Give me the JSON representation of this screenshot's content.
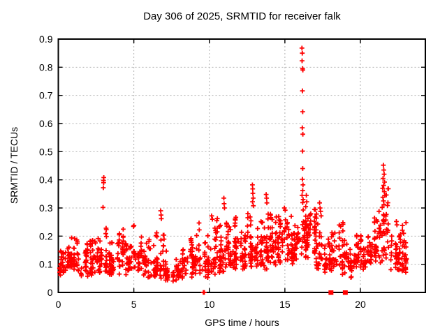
{
  "chart_data": {
    "type": "scatter",
    "title": "Day 306 of 2025, SRMTID for receiver falk",
    "xlabel": "GPS time / hours",
    "ylabel": "SRMTID / TECUs",
    "xlim": [
      0,
      24.3
    ],
    "ylim": [
      0,
      0.9
    ],
    "xticks": [
      0,
      5,
      10,
      15,
      20
    ],
    "xtick_labels": [
      "0",
      "5",
      "10",
      "15",
      "20"
    ],
    "yticks": [
      0,
      0.1,
      0.2,
      0.3,
      0.4,
      0.5,
      0.6,
      0.7,
      0.8,
      0.9
    ],
    "ytick_labels": [
      "0",
      "0.1",
      "0.2",
      "0.3",
      "0.4",
      "0.5",
      "0.6",
      "0.7",
      "0.8",
      "0.9"
    ],
    "grid": "dashed-major",
    "legend": "none",
    "series": [
      {
        "name": "SRMTID",
        "marker": "plus",
        "color": "#ff0000"
      }
    ],
    "band_bins": [
      [
        0.0,
        0.5,
        28,
        0.06,
        0.16
      ],
      [
        0.5,
        1.0,
        30,
        0.07,
        0.22
      ],
      [
        1.0,
        1.5,
        28,
        0.07,
        0.2
      ],
      [
        1.5,
        2.0,
        28,
        0.05,
        0.18
      ],
      [
        2.0,
        2.5,
        30,
        0.06,
        0.23
      ],
      [
        2.5,
        3.0,
        28,
        0.07,
        0.2
      ],
      [
        3.0,
        3.5,
        30,
        0.06,
        0.25
      ],
      [
        3.5,
        4.0,
        28,
        0.05,
        0.2
      ],
      [
        4.0,
        4.5,
        30,
        0.06,
        0.24
      ],
      [
        4.5,
        5.0,
        28,
        0.05,
        0.24
      ],
      [
        5.0,
        5.5,
        28,
        0.07,
        0.2
      ],
      [
        5.5,
        6.0,
        26,
        0.05,
        0.19
      ],
      [
        6.0,
        6.5,
        26,
        0.05,
        0.17
      ],
      [
        6.5,
        7.0,
        28,
        0.05,
        0.24
      ],
      [
        7.0,
        7.5,
        24,
        0.04,
        0.15
      ],
      [
        7.5,
        8.0,
        24,
        0.04,
        0.13
      ],
      [
        8.0,
        8.5,
        26,
        0.05,
        0.16
      ],
      [
        8.5,
        9.0,
        28,
        0.05,
        0.22
      ],
      [
        9.0,
        9.5,
        26,
        0.06,
        0.25
      ],
      [
        9.5,
        10.0,
        28,
        0.05,
        0.22
      ],
      [
        10.0,
        10.5,
        32,
        0.06,
        0.27
      ],
      [
        10.5,
        11.0,
        32,
        0.06,
        0.24
      ],
      [
        11.0,
        11.5,
        32,
        0.07,
        0.26
      ],
      [
        11.5,
        12.0,
        34,
        0.07,
        0.28
      ],
      [
        12.0,
        12.5,
        34,
        0.08,
        0.26
      ],
      [
        12.5,
        13.0,
        34,
        0.08,
        0.3
      ],
      [
        13.0,
        13.5,
        34,
        0.09,
        0.28
      ],
      [
        13.5,
        14.0,
        34,
        0.08,
        0.3
      ],
      [
        14.0,
        14.5,
        34,
        0.09,
        0.28
      ],
      [
        14.5,
        15.0,
        34,
        0.1,
        0.28
      ],
      [
        15.0,
        15.5,
        34,
        0.1,
        0.28
      ],
      [
        15.5,
        16.0,
        34,
        0.1,
        0.3
      ],
      [
        16.0,
        16.5,
        36,
        0.12,
        0.32
      ],
      [
        16.5,
        17.0,
        34,
        0.12,
        0.3
      ],
      [
        17.0,
        17.5,
        30,
        0.08,
        0.28
      ],
      [
        17.5,
        18.0,
        28,
        0.06,
        0.2
      ],
      [
        18.0,
        18.5,
        28,
        0.07,
        0.22
      ],
      [
        18.5,
        19.0,
        28,
        0.06,
        0.25
      ],
      [
        19.0,
        19.5,
        26,
        0.05,
        0.18
      ],
      [
        19.5,
        20.0,
        28,
        0.08,
        0.22
      ],
      [
        20.0,
        20.5,
        30,
        0.08,
        0.24
      ],
      [
        20.5,
        21.0,
        30,
        0.1,
        0.28
      ],
      [
        21.0,
        21.5,
        30,
        0.1,
        0.3
      ],
      [
        21.5,
        22.0,
        32,
        0.12,
        0.38
      ],
      [
        22.0,
        22.5,
        28,
        0.08,
        0.22
      ],
      [
        22.5,
        23.0,
        30,
        0.05,
        0.25
      ],
      [
        23.0,
        23.2,
        12,
        0.07,
        0.2
      ]
    ],
    "outlier_points": [
      [
        2.96,
        0.302
      ],
      [
        2.98,
        0.372
      ],
      [
        2.99,
        0.398
      ],
      [
        3.01,
        0.408
      ],
      [
        3.0,
        0.39
      ],
      [
        6.78,
        0.29
      ],
      [
        6.8,
        0.275
      ],
      [
        6.82,
        0.262
      ],
      [
        10.15,
        0.272
      ],
      [
        10.2,
        0.26
      ],
      [
        10.96,
        0.335
      ],
      [
        10.98,
        0.315
      ],
      [
        11.0,
        0.3
      ],
      [
        12.85,
        0.382
      ],
      [
        12.87,
        0.368
      ],
      [
        12.88,
        0.352
      ],
      [
        12.9,
        0.335
      ],
      [
        12.86,
        0.322
      ],
      [
        12.91,
        0.308
      ],
      [
        13.76,
        0.348
      ],
      [
        13.79,
        0.335
      ],
      [
        13.81,
        0.318
      ],
      [
        14.97,
        0.3
      ],
      [
        15.02,
        0.292
      ],
      [
        16.13,
        0.868
      ],
      [
        16.15,
        0.85
      ],
      [
        16.14,
        0.823
      ],
      [
        16.17,
        0.795
      ],
      [
        16.19,
        0.79
      ],
      [
        16.16,
        0.716
      ],
      [
        16.18,
        0.642
      ],
      [
        16.15,
        0.585
      ],
      [
        16.19,
        0.562
      ],
      [
        16.17,
        0.502
      ],
      [
        16.18,
        0.44
      ],
      [
        16.16,
        0.402
      ],
      [
        16.2,
        0.382
      ],
      [
        16.18,
        0.362
      ],
      [
        16.14,
        0.345
      ],
      [
        16.21,
        0.33
      ],
      [
        16.42,
        0.345
      ],
      [
        16.45,
        0.322
      ],
      [
        16.38,
        0.305
      ],
      [
        17.3,
        0.318
      ],
      [
        17.33,
        0.3
      ],
      [
        17.37,
        0.288
      ],
      [
        17.4,
        0.272
      ],
      [
        21.52,
        0.452
      ],
      [
        21.55,
        0.435
      ],
      [
        21.57,
        0.42
      ],
      [
        21.5,
        0.405
      ],
      [
        21.6,
        0.392
      ],
      [
        21.54,
        0.38
      ],
      [
        21.47,
        0.37
      ],
      [
        21.58,
        0.358
      ],
      [
        21.62,
        0.345
      ],
      [
        21.49,
        0.338
      ],
      [
        21.53,
        0.325
      ],
      [
        21.56,
        0.312
      ],
      [
        21.44,
        0.302
      ],
      [
        22.38,
        0.252
      ],
      [
        22.42,
        0.24
      ],
      [
        23.02,
        0.248
      ]
    ],
    "zero_plus_points": [
      9.6,
      9.67
    ],
    "zero_square_clusters": [
      18.05,
      19.0
    ]
  },
  "colors": {
    "marker": "#ff0000",
    "axis": "#000000",
    "grid": "#b0b0b0",
    "background": "#ffffff"
  }
}
